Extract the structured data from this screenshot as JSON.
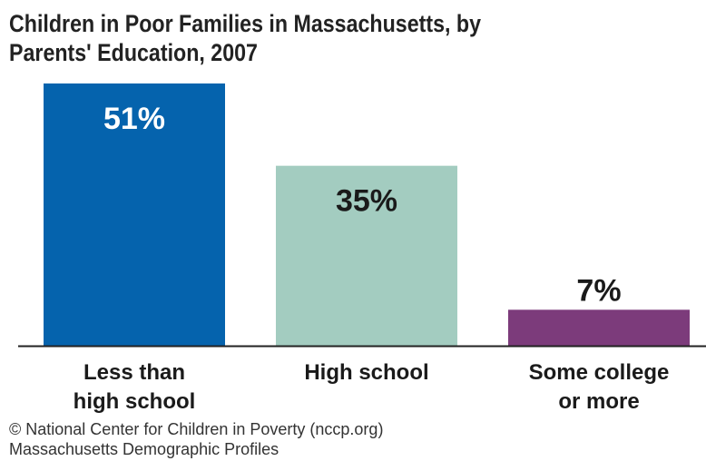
{
  "chart_data": {
    "type": "bar",
    "title_lines": [
      "Children in Poor Families in Massachusetts, by",
      "Parents' Education, 2007"
    ],
    "categories": [
      [
        "Less than",
        "high school"
      ],
      [
        "High school"
      ],
      [
        "Some college",
        "or more"
      ]
    ],
    "values": [
      51,
      35,
      7
    ],
    "value_labels": [
      "51%",
      "35%",
      "7%"
    ],
    "colors": [
      "#0563ad",
      "#a3ccc0",
      "#7c3b7b"
    ],
    "label_colors": [
      "#ffffff",
      "#1a1a1a",
      "#1a1a1a"
    ],
    "ylim": [
      0,
      51
    ],
    "grid": false,
    "legend": "none"
  },
  "source": {
    "line1": "© National Center for Children in Poverty (nccp.org)",
    "line2": "Massachusetts Demographic Profiles"
  }
}
